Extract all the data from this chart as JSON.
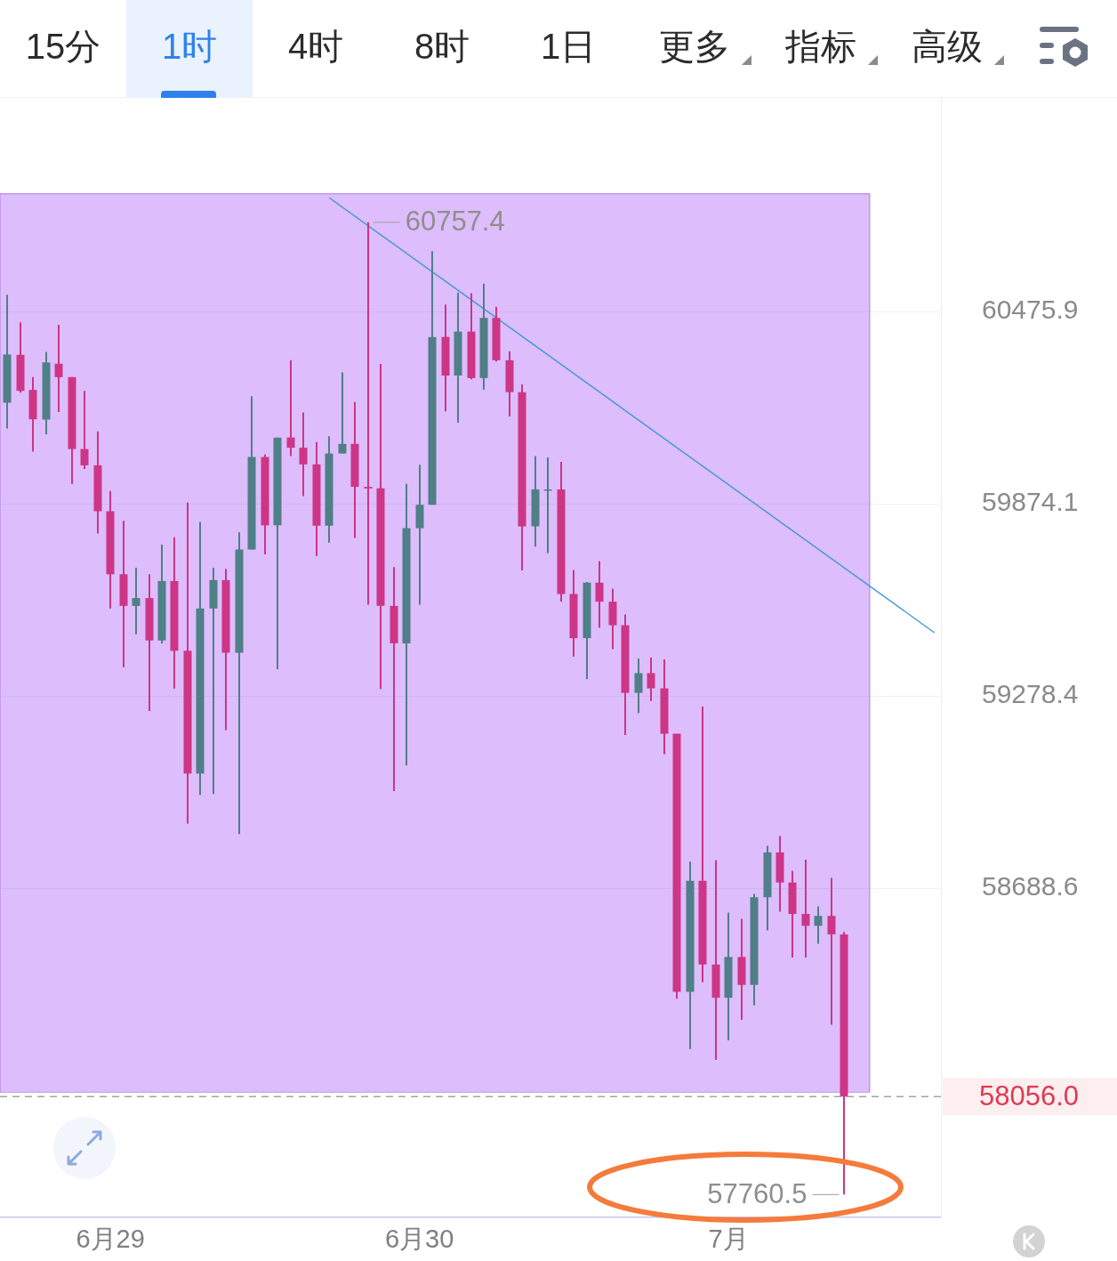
{
  "chart_data": {
    "type": "candlestick",
    "categories": [
      null,
      null,
      null,
      null,
      null,
      null,
      null,
      null,
      "6月29",
      null,
      null,
      null,
      null,
      null,
      null,
      null,
      null,
      null,
      null,
      null,
      null,
      null,
      null,
      null,
      null,
      null,
      null,
      null,
      null,
      null,
      null,
      null,
      "6月30",
      null,
      null,
      null,
      null,
      null,
      null,
      null,
      null,
      null,
      null,
      null,
      null,
      null,
      null,
      null,
      null,
      null,
      null,
      null,
      null,
      null,
      null,
      null,
      "7月",
      null,
      null,
      null,
      null,
      null,
      null,
      null,
      null,
      null,
      null,
      null,
      null,
      null,
      null,
      null,
      null
    ],
    "ohlc": [
      [
        60190,
        60529,
        60109,
        60341
      ],
      [
        60340,
        60442,
        60221,
        60227
      ],
      [
        60230,
        60270,
        60037,
        60138
      ],
      [
        60137,
        60349,
        60091,
        60316
      ],
      [
        60312,
        60434,
        60161,
        60270
      ],
      [
        60270,
        60270,
        59936,
        60045
      ],
      [
        60045,
        60227,
        59983,
        59994
      ],
      [
        59994,
        60100,
        59782,
        59851
      ],
      [
        59851,
        59914,
        59549,
        59655
      ],
      [
        59655,
        59821,
        59367,
        59557
      ],
      [
        59557,
        59675,
        59469,
        59581
      ],
      [
        59581,
        59655,
        59232,
        59450
      ],
      [
        59450,
        59747,
        59441,
        59634
      ],
      [
        59634,
        59770,
        59301,
        59418
      ],
      [
        59418,
        59878,
        58886,
        59040
      ],
      [
        59040,
        59818,
        58974,
        59549
      ],
      [
        59549,
        59675,
        58977,
        59637
      ],
      [
        59637,
        59672,
        59173,
        59412
      ],
      [
        59412,
        59786,
        58854,
        59732
      ],
      [
        59732,
        60210,
        59732,
        60020
      ],
      [
        60020,
        60028,
        59717,
        59807
      ],
      [
        59807,
        60081,
        59361,
        60081
      ],
      [
        60081,
        60323,
        60023,
        60049
      ],
      [
        60049,
        60159,
        59898,
        59997
      ],
      [
        59997,
        60067,
        59712,
        59806
      ],
      [
        59806,
        60085,
        59753,
        60031
      ],
      [
        60031,
        60285,
        60031,
        60061
      ],
      [
        60061,
        60192,
        59768,
        59927
      ],
      [
        59927,
        60757.4,
        59561,
        59922
      ],
      [
        59922,
        60311,
        59300,
        59557
      ],
      [
        59557,
        59677,
        58986,
        59441
      ],
      [
        59441,
        59936,
        59065,
        59798
      ],
      [
        59798,
        59996,
        59561,
        59871
      ],
      [
        59871,
        60666,
        59871,
        60396
      ],
      [
        60396,
        60498,
        60163,
        60275
      ],
      [
        60275,
        60536,
        60127,
        60413
      ],
      [
        60413,
        60534,
        60263,
        60267
      ],
      [
        60267,
        60564,
        60231,
        60456
      ],
      [
        60456,
        60491,
        60319,
        60323
      ],
      [
        60323,
        60351,
        60147,
        60223
      ],
      [
        60223,
        60247,
        59667,
        59804
      ],
      [
        59804,
        60023,
        59741,
        59919
      ],
      [
        59917,
        60019,
        59721,
        59919
      ],
      [
        59919,
        60005,
        59570,
        59594
      ],
      [
        59594,
        59668,
        59400,
        59457
      ],
      [
        59457,
        59631,
        59330,
        59629
      ],
      [
        59629,
        59696,
        59489,
        59570
      ],
      [
        59570,
        59610,
        59423,
        59497
      ],
      [
        59497,
        59530,
        59158,
        59288
      ],
      [
        59288,
        59394,
        59226,
        59349
      ],
      [
        59349,
        59397,
        59263,
        59302
      ],
      [
        59302,
        59391,
        59099,
        59162
      ],
      [
        59162,
        59162,
        58352,
        58373
      ],
      [
        58373,
        58770,
        58200,
        58711
      ],
      [
        58711,
        59246,
        58402,
        58456
      ],
      [
        58456,
        58774,
        58167,
        58355
      ],
      [
        58355,
        58614,
        58226,
        58479
      ],
      [
        58479,
        58595,
        58288,
        58394
      ],
      [
        58394,
        58671,
        58332,
        58661
      ],
      [
        58661,
        58818,
        58560,
        58798
      ],
      [
        58798,
        58848,
        58617,
        58706
      ],
      [
        58706,
        58742,
        58477,
        58610
      ],
      [
        58610,
        58776,
        58477,
        58574
      ],
      [
        58574,
        58633,
        58519,
        58604
      ],
      [
        58604,
        58720,
        58273,
        58548
      ],
      [
        58548,
        58555,
        57760.5,
        58056.0
      ],
      null,
      null,
      null,
      null,
      null,
      null,
      null
    ],
    "colors": [
      "#4f7f87",
      "#cd3586",
      "#cd3586",
      "#4f7f87",
      "#cd3586",
      "#cd3586",
      "#cd3586",
      "#cd3586",
      "#cd3586",
      "#cd3586",
      "#4f7f87",
      "#cd3586",
      "#4f7f87",
      "#cd3586",
      "#cd3586",
      "#4f7f87",
      "#4f7f87",
      "#cd3586",
      "#4f7f87",
      "#4f7f87",
      "#cd3586",
      "#4f7f87",
      "#cd3586",
      "#cd3586",
      "#cd3586",
      "#4f7f87",
      "#4f7f87",
      "#cd3586",
      "#cd3586",
      "#cd3586",
      "#cd3586",
      "#4f7f87",
      "#4f7f87",
      "#4f7f87",
      "#cd3586",
      "#4f7f87",
      "#cd3586",
      "#4f7f87",
      "#cd3586",
      "#cd3586",
      "#cd3586",
      "#4f7f87",
      "#4f7f87",
      "#cd3586",
      "#cd3586",
      "#4f7f87",
      "#cd3586",
      "#cd3586",
      "#cd3586",
      "#4f7f87",
      "#cd3586",
      "#cd3586",
      "#cd3586",
      "#4f7f87",
      "#cd3586",
      "#cd3586",
      "#4f7f87",
      "#cd3586",
      "#4f7f87",
      "#4f7f87",
      "#cd3586",
      "#cd3586",
      "#cd3586",
      "#4f7f87",
      "#cd3586",
      "#cd3586",
      null,
      null,
      null,
      null,
      null,
      null,
      null
    ],
    "series": [
      {
        "type": "line",
        "color": "#3d97d8",
        "values": [
          null,
          null,
          null,
          null,
          null,
          null,
          null,
          null,
          null,
          null,
          null,
          null,
          null,
          null,
          null,
          null,
          null,
          null,
          null,
          null,
          null,
          null,
          null,
          null,
          null,
          60835,
          null,
          null,
          null,
          null,
          null,
          null,
          null,
          null,
          null,
          null,
          null,
          null,
          null,
          null,
          null,
          null,
          null,
          null,
          null,
          null,
          null,
          null,
          null,
          null,
          null,
          null,
          null,
          null,
          null,
          null,
          null,
          null,
          null,
          null,
          null,
          null,
          null,
          null,
          null,
          null,
          null,
          null,
          null,
          null,
          null,
          null,
          59474
        ]
      }
    ],
    "ylim": [
      57692,
      61152
    ],
    "yticks": [
      60475.9,
      59874.1,
      59278.4,
      58688.6
    ],
    "log": "y",
    "grid": "y",
    "bands": [
      {
        "axis": "y",
        "from": 58070,
        "to": 60849,
        "color": "#ddbdfb"
      }
    ],
    "ref_lines": [
      {
        "axis": "y",
        "value": 58056.0,
        "label": "58056.0",
        "color": "#a3a3a3",
        "line_style": "dashed"
      }
    ],
    "annotations": [
      "60757.4",
      "57760.5",
      "15分",
      "1时",
      "4时",
      "8时",
      "1日",
      "更多",
      "指标",
      "高级"
    ]
  }
}
